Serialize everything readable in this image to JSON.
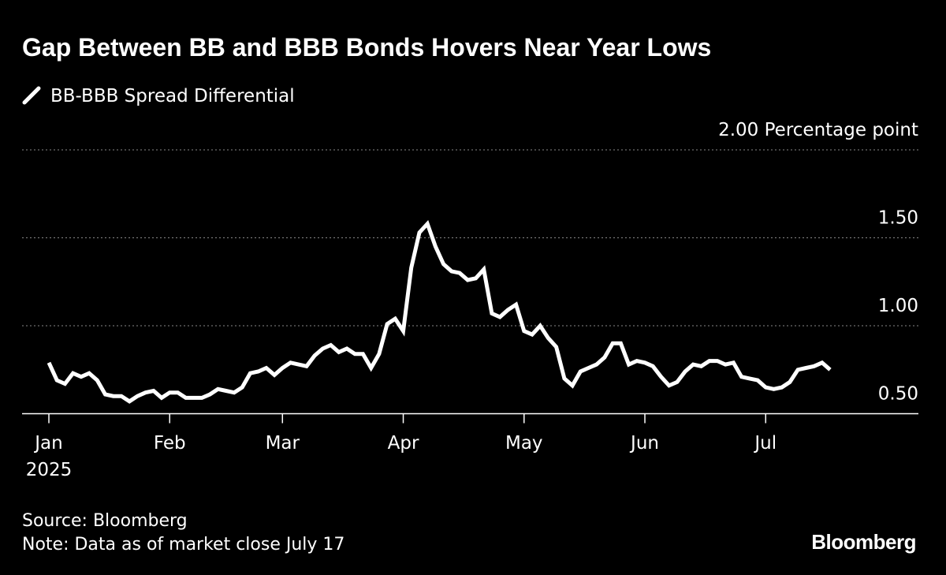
{
  "chart_data": {
    "type": "line",
    "title": "Gap Between BB and BBB Bonds Hovers Near Year Lows",
    "categories": [
      "Jan\n2025",
      null,
      null,
      null,
      null,
      null,
      null,
      null,
      null,
      null,
      null,
      null,
      null,
      null,
      null,
      "Feb",
      null,
      null,
      null,
      null,
      null,
      null,
      null,
      null,
      null,
      null,
      null,
      null,
      null,
      "Mar",
      null,
      null,
      null,
      null,
      null,
      null,
      null,
      null,
      null,
      null,
      null,
      null,
      null,
      null,
      "Apr",
      null,
      null,
      null,
      null,
      null,
      null,
      null,
      null,
      null,
      null,
      null,
      null,
      null,
      null,
      "May",
      null,
      null,
      null,
      null,
      null,
      null,
      null,
      null,
      null,
      null,
      null,
      null,
      null,
      null,
      "Jun",
      null,
      null,
      null,
      null,
      null,
      null,
      null,
      null,
      null,
      null,
      null,
      null,
      null,
      null,
      "Jul",
      null,
      null,
      null,
      null,
      null,
      null,
      null,
      null
    ],
    "series": [
      {
        "name": "BB-BBB Spread Differential",
        "color": "#ffffff",
        "values": [
          0.79,
          0.69,
          0.67,
          0.73,
          0.71,
          0.73,
          0.69,
          0.61,
          0.6,
          0.6,
          0.57,
          0.6,
          0.62,
          0.63,
          0.59,
          0.62,
          0.62,
          0.59,
          0.59,
          0.59,
          0.61,
          0.64,
          0.63,
          0.62,
          0.65,
          0.73,
          0.74,
          0.76,
          0.72,
          0.76,
          0.79,
          0.78,
          0.77,
          0.83,
          0.87,
          0.89,
          0.85,
          0.87,
          0.84,
          0.84,
          0.76,
          0.84,
          1.01,
          1.04,
          0.97,
          1.33,
          1.53,
          1.58,
          1.45,
          1.35,
          1.31,
          1.3,
          1.26,
          1.27,
          1.32,
          1.07,
          1.05,
          1.09,
          1.12,
          0.97,
          0.95,
          1.0,
          0.93,
          0.88,
          0.7,
          0.66,
          0.74,
          0.76,
          0.78,
          0.82,
          0.9,
          0.9,
          0.78,
          0.8,
          0.79,
          0.77,
          0.71,
          0.66,
          0.68,
          0.74,
          0.78,
          0.77,
          0.8,
          0.8,
          0.78,
          0.79,
          0.71,
          0.7,
          0.69,
          0.65,
          0.64,
          0.65,
          0.68,
          0.75,
          0.76,
          0.77,
          0.79,
          0.75
        ]
      }
    ],
    "ylim": [
      0.5,
      2.0
    ],
    "yticks": [
      {
        "value": 0.5,
        "label": "0.50"
      },
      {
        "value": 1.0,
        "label": "1.00"
      },
      {
        "value": 1.5,
        "label": "1.50"
      },
      {
        "value": 2.0,
        "label": "2.00 Percentage point"
      }
    ],
    "grid": true,
    "source": "Source: Bloomberg",
    "note": "Note: Data as of market close July 17",
    "brand": "Bloomberg"
  }
}
